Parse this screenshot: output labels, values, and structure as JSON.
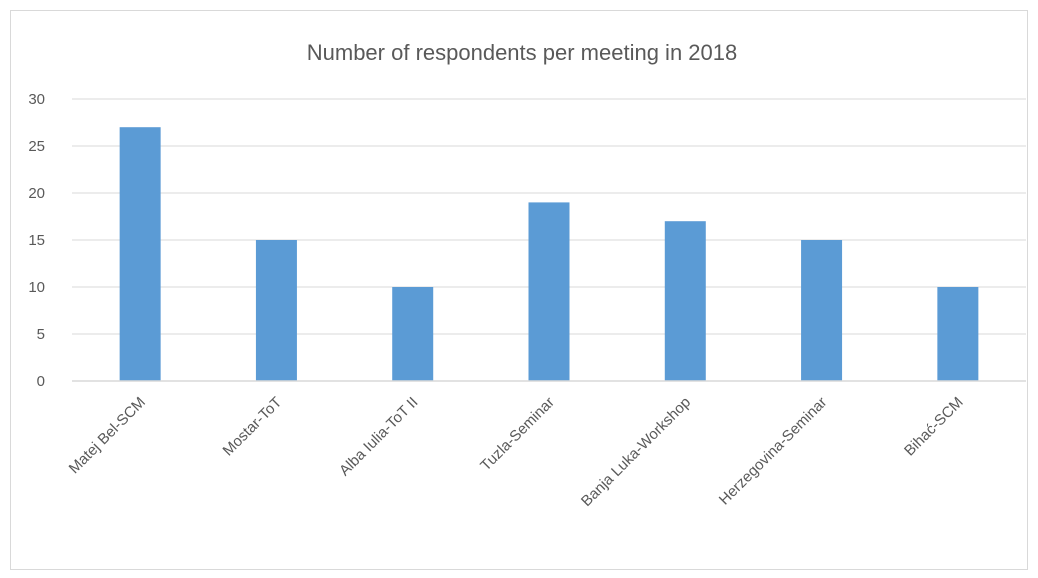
{
  "chart_data": {
    "type": "bar",
    "title": "Number of respondents per meeting in 2018",
    "xlabel": "",
    "ylabel": "",
    "categories": [
      "Matej Bel-SCM",
      "Mostar-ToT",
      "Alba Iulia-ToT II",
      "Tuzla-Seminar",
      "Banja Luka-Workshop",
      "Herzegovina-Seminar",
      "Bihać-SCM"
    ],
    "values": [
      27,
      15,
      10,
      19,
      17,
      15,
      10
    ],
    "ylim": [
      0,
      30
    ],
    "yticks": [
      "0",
      "5",
      "10",
      "15",
      "20",
      "25",
      "30"
    ],
    "grid": true,
    "legend": "none",
    "colors": {
      "bar": "#5b9bd5",
      "grid": "#d9d9d9",
      "text": "#595959",
      "axis": "#d9d9d9"
    }
  }
}
